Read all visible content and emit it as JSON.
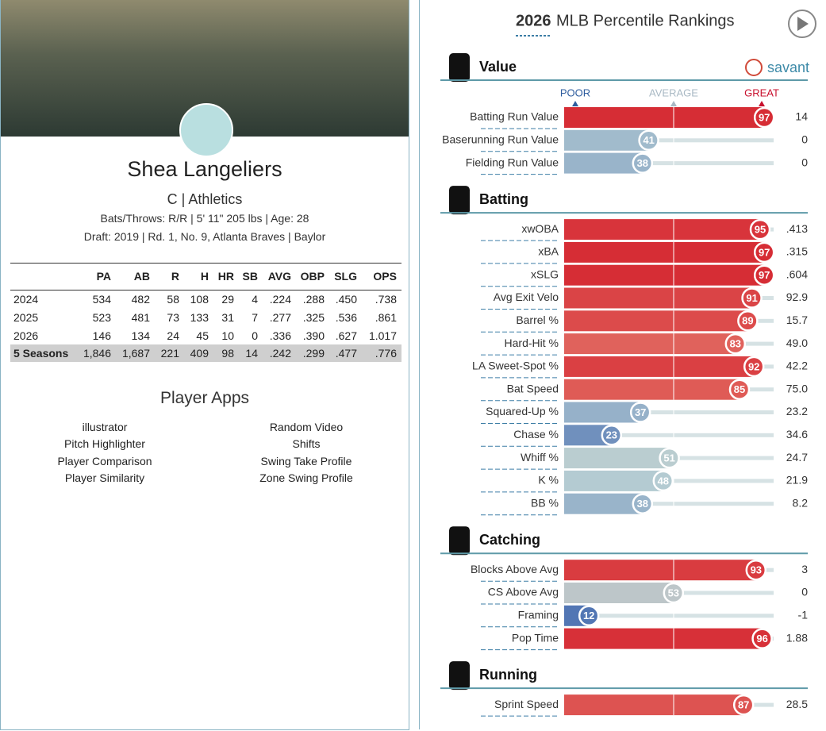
{
  "player": {
    "name": "Shea Langeliers",
    "position_team": "C | Athletics",
    "bio": "Bats/Throws: R/R | 5' 11\" 205 lbs | Age: 28",
    "draft": "Draft: 2019 | Rd. 1, No. 9, Atlanta Braves | Baylor"
  },
  "stats": {
    "columns": [
      "PA",
      "AB",
      "R",
      "H",
      "HR",
      "SB",
      "AVG",
      "OBP",
      "SLG",
      "OPS"
    ],
    "rows": [
      {
        "season": "2024",
        "values": [
          "534",
          "482",
          "58",
          "108",
          "29",
          "4",
          ".224",
          ".288",
          ".450",
          ".738"
        ]
      },
      {
        "season": "2025",
        "values": [
          "523",
          "481",
          "73",
          "133",
          "31",
          "7",
          ".277",
          ".325",
          ".536",
          ".861"
        ]
      },
      {
        "season": "2026",
        "values": [
          "146",
          "134",
          "24",
          "45",
          "10",
          "0",
          ".336",
          ".390",
          ".627",
          "1.017"
        ]
      },
      {
        "season": "5 Seasons",
        "values": [
          "1,846",
          "1,687",
          "221",
          "409",
          "98",
          "14",
          ".242",
          ".299",
          ".477",
          ".776"
        ]
      }
    ]
  },
  "apps": {
    "title": "Player Apps",
    "left": [
      "illustrator",
      "Pitch Highlighter",
      "Player Comparison",
      "Player Similarity"
    ],
    "right": [
      "Random Video",
      "Shifts",
      "Swing Take Profile",
      "Zone Swing Profile"
    ]
  },
  "rankings": {
    "year": "2026",
    "title": "MLB Percentile Rankings",
    "brand": "savant",
    "scale": [
      "POOR",
      "AVERAGE",
      "GREAT"
    ],
    "sections": [
      {
        "name": "Value",
        "rows": [
          {
            "label": "Batting Run Value",
            "percentile": 97,
            "value": "14"
          },
          {
            "label": "Baserunning Run Value",
            "percentile": 41,
            "value": "0"
          },
          {
            "label": "Fielding Run Value",
            "percentile": 38,
            "value": "0"
          }
        ]
      },
      {
        "name": "Batting",
        "rows": [
          {
            "label": "xwOBA",
            "percentile": 95,
            "value": ".413"
          },
          {
            "label": "xBA",
            "percentile": 97,
            "value": ".315"
          },
          {
            "label": "xSLG",
            "percentile": 97,
            "value": ".604"
          },
          {
            "label": "Avg Exit Velo",
            "percentile": 91,
            "value": "92.9"
          },
          {
            "label": "Barrel %",
            "percentile": 89,
            "value": "15.7"
          },
          {
            "label": "Hard-Hit %",
            "percentile": 83,
            "value": "49.0"
          },
          {
            "label": "LA Sweet-Spot %",
            "percentile": 92,
            "value": "42.2"
          },
          {
            "label": "Bat Speed",
            "percentile": 85,
            "value": "75.0"
          },
          {
            "label": "Squared-Up %",
            "percentile": 37,
            "value": "23.2"
          },
          {
            "label": "Chase %",
            "percentile": 23,
            "value": "34.6"
          },
          {
            "label": "Whiff %",
            "percentile": 51,
            "value": "24.7"
          },
          {
            "label": "K %",
            "percentile": 48,
            "value": "21.9"
          },
          {
            "label": "BB %",
            "percentile": 38,
            "value": "8.2"
          }
        ]
      },
      {
        "name": "Catching",
        "rows": [
          {
            "label": "Blocks Above Avg",
            "percentile": 93,
            "value": "3"
          },
          {
            "label": "CS Above Avg",
            "percentile": 53,
            "value": "0"
          },
          {
            "label": "Framing",
            "percentile": 12,
            "value": "-1"
          },
          {
            "label": "Pop Time",
            "percentile": 96,
            "value": "1.88"
          }
        ]
      },
      {
        "name": "Running",
        "rows": [
          {
            "label": "Sprint Speed",
            "percentile": 87,
            "value": "28.5"
          }
        ]
      }
    ]
  }
}
